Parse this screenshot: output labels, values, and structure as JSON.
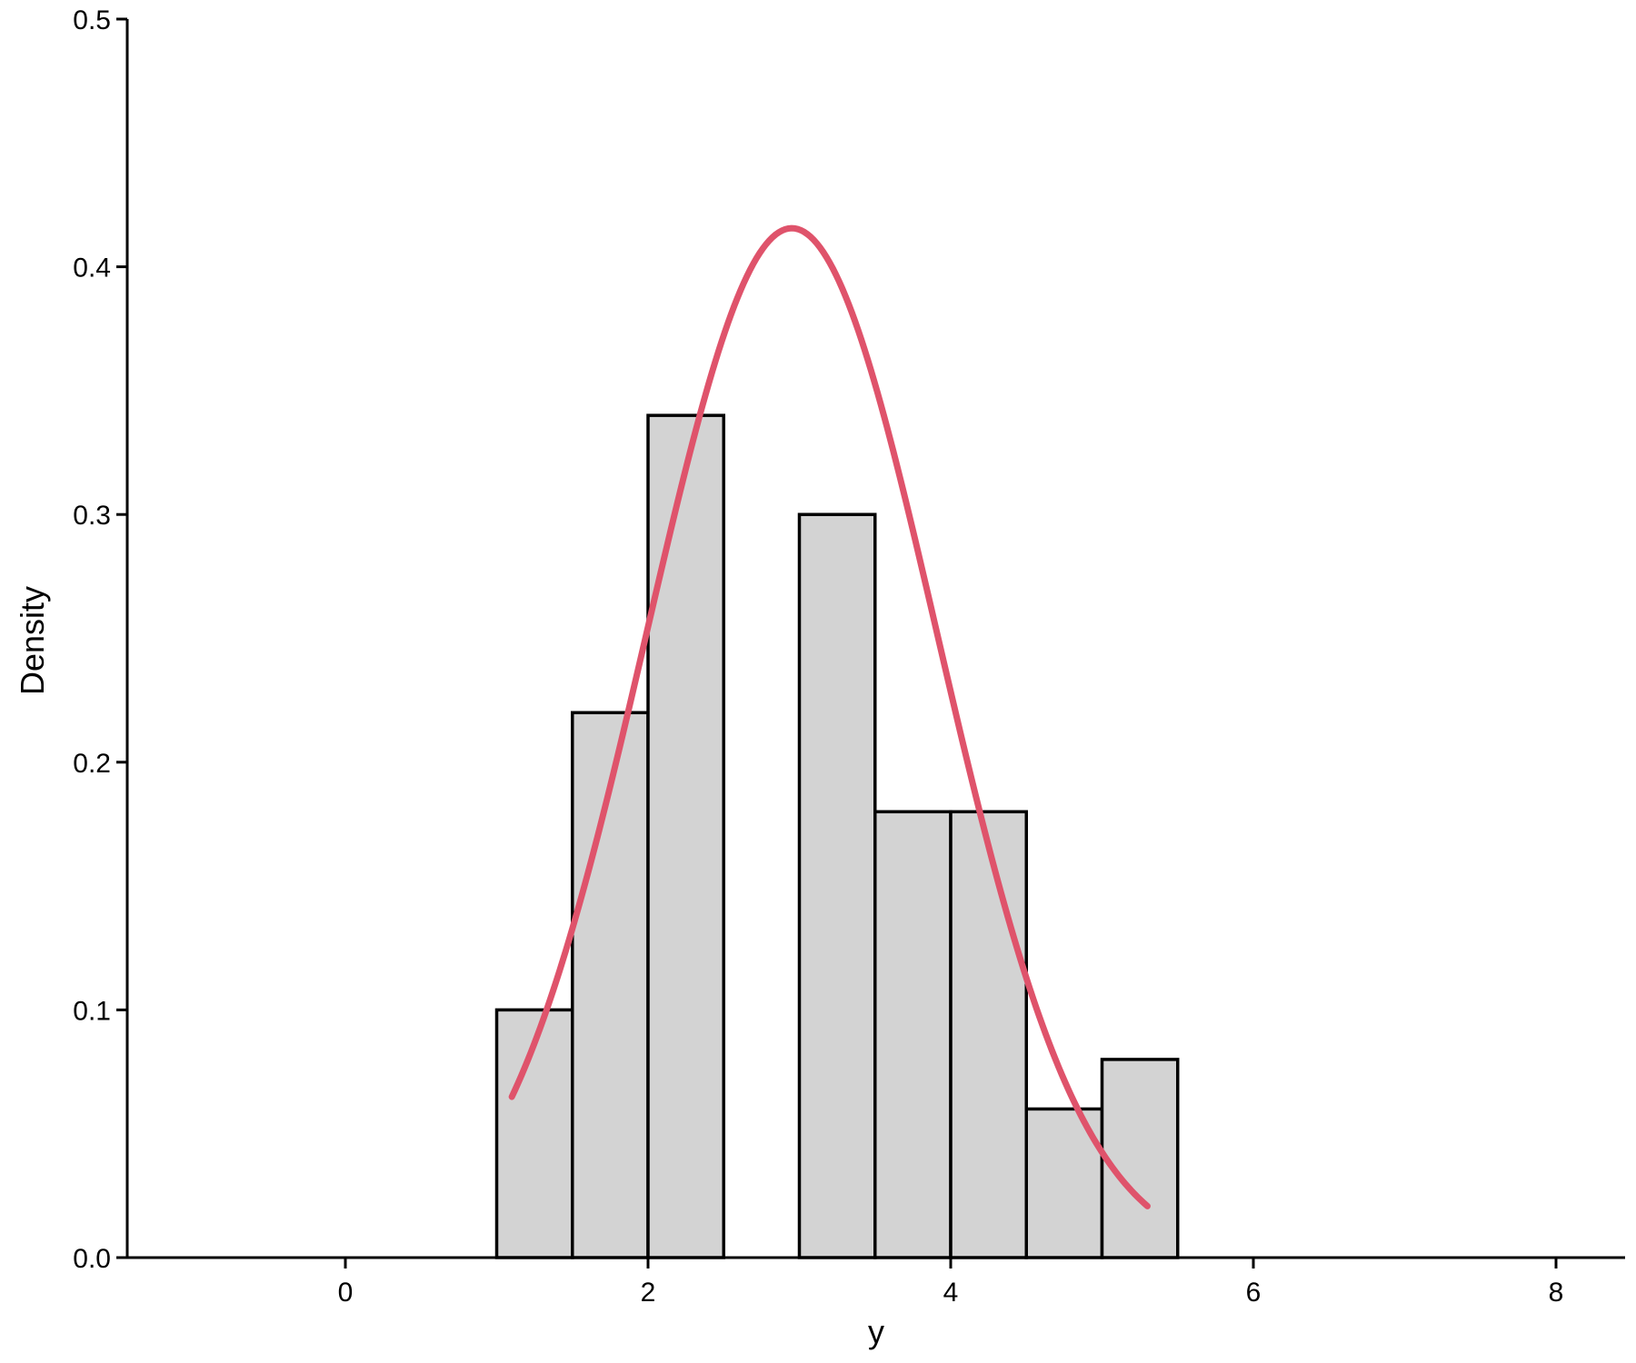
{
  "chart_data": {
    "type": "bar",
    "xlabel": "y",
    "ylabel": "Density",
    "xlim": [
      -1.5,
      8.5
    ],
    "ylim": [
      0,
      0.5
    ],
    "xticks": [
      "0",
      "2",
      "4",
      "6",
      "8"
    ],
    "yticks": [
      "0.0",
      "0.1",
      "0.2",
      "0.3",
      "0.4",
      "0.5"
    ],
    "bins": [
      {
        "x0": 1.0,
        "x1": 1.5,
        "density": 0.1
      },
      {
        "x0": 1.5,
        "x1": 2.0,
        "density": 0.22
      },
      {
        "x0": 2.0,
        "x1": 2.5,
        "density": 0.34
      },
      {
        "x0": 2.5,
        "x1": 3.0,
        "density": 0.0
      },
      {
        "x0": 3.0,
        "x1": 3.5,
        "density": 0.3
      },
      {
        "x0": 3.5,
        "x1": 4.0,
        "density": 0.18
      },
      {
        "x0": 4.0,
        "x1": 4.5,
        "density": 0.18
      },
      {
        "x0": 4.5,
        "x1": 5.0,
        "density": 0.06
      },
      {
        "x0": 5.0,
        "x1": 5.5,
        "density": 0.08
      }
    ],
    "baseline_x_range": [
      -1.0,
      8.0
    ],
    "density_curve": {
      "distribution": "normal",
      "mean": 2.95,
      "sd": 0.96,
      "x_range": [
        1.1,
        5.3
      ]
    },
    "grid": false,
    "colors": {
      "bar_fill": "#d3d3d3",
      "bar_stroke": "#000000",
      "curve": "#df536b",
      "axis": "#000000"
    }
  }
}
